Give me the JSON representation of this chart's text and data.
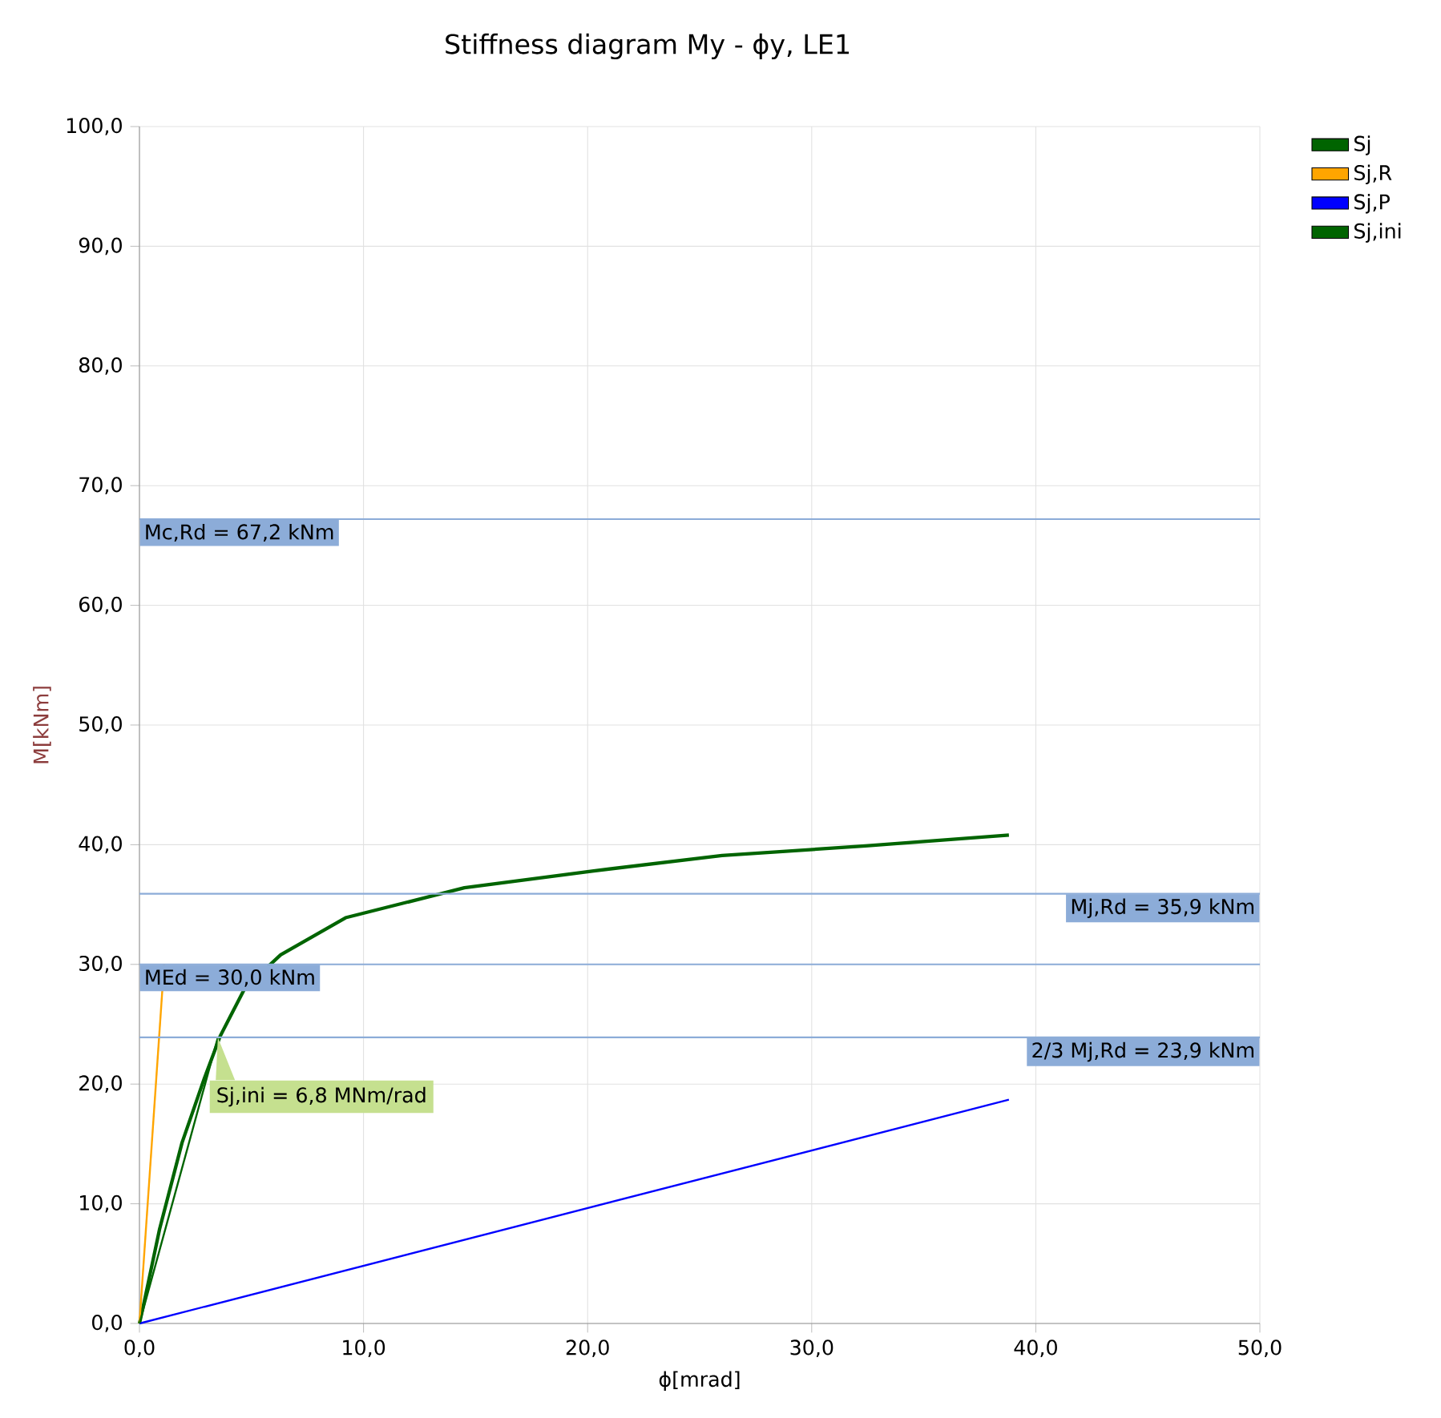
{
  "chart_data": {
    "type": "line",
    "title": "Stiffness diagram My - ϕy, LE1",
    "xlabel": "ϕ[mrad]",
    "ylabel": "M[kNm]",
    "xlim": [
      0,
      50
    ],
    "ylim": [
      0,
      100
    ],
    "xticks": [
      {
        "value": 0,
        "label": "0,0"
      },
      {
        "value": 10,
        "label": "10,0"
      },
      {
        "value": 20,
        "label": "20,0"
      },
      {
        "value": 30,
        "label": "30,0"
      },
      {
        "value": 40,
        "label": "40,0"
      },
      {
        "value": 50,
        "label": "50,0"
      }
    ],
    "yticks": [
      {
        "value": 0,
        "label": "0,0"
      },
      {
        "value": 10,
        "label": "10,0"
      },
      {
        "value": 20,
        "label": "20,0"
      },
      {
        "value": 30,
        "label": "30,0"
      },
      {
        "value": 40,
        "label": "40,0"
      },
      {
        "value": 50,
        "label": "50,0"
      },
      {
        "value": 60,
        "label": "60,0"
      },
      {
        "value": 70,
        "label": "70,0"
      },
      {
        "value": 80,
        "label": "80,0"
      },
      {
        "value": 90,
        "label": "90,0"
      },
      {
        "value": 100,
        "label": "100,0"
      }
    ],
    "series": [
      {
        "name": "Sj",
        "color": "#006400",
        "x": [
          0,
          0.2,
          0.9,
          1.9,
          2.9,
          3.6,
          4.7,
          6.3,
          9.2,
          14.5,
          20.2,
          26,
          32.4,
          38.8
        ],
        "values": [
          0,
          1.7,
          7.9,
          15.1,
          20.5,
          24.0,
          28.0,
          30.8,
          33.9,
          36.4,
          37.8,
          39.1,
          39.9,
          40.8
        ]
      },
      {
        "name": "Sj,R",
        "color": "#ffa500",
        "x": [
          0,
          1.1
        ],
        "values": [
          0,
          30.0
        ]
      },
      {
        "name": "Sj,P",
        "color": "#0000ff",
        "x": [
          0,
          38.8
        ],
        "values": [
          0,
          18.7
        ]
      },
      {
        "name": "Sj,ini",
        "color": "#006400",
        "x": [
          0,
          3.5
        ],
        "values": [
          0,
          23.9
        ]
      }
    ],
    "ref_lines": [
      {
        "axis": "y",
        "value": 67.2,
        "label": "Mc,Rd = 67,2 kNm",
        "color": "#8cacd8"
      },
      {
        "axis": "y",
        "value": 35.9,
        "label": "Mj,Rd = 35,9 kNm",
        "color": "#8cacd8"
      },
      {
        "axis": "y",
        "value": 30.0,
        "label": "MEd = 30,0 kNm",
        "color": "#8cacd8"
      },
      {
        "axis": "y",
        "value": 23.9,
        "label": "2/3 Mj,Rd = 23,9 kNm",
        "color": "#8cacd8"
      }
    ],
    "annotations": [
      {
        "text": "Sj,ini = 6,8 MNm/rad",
        "x": 3.5,
        "y": 23.9
      }
    ],
    "grid": true,
    "legend": "top right",
    "marker": "none",
    "line_style": "solid"
  }
}
